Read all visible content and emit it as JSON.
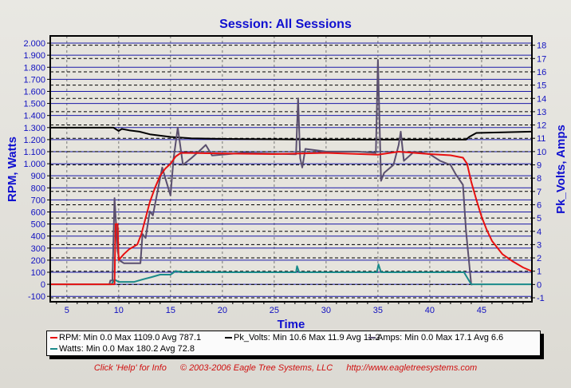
{
  "chart_data": {
    "type": "line",
    "title": "Session: All Sessions",
    "xlabel": "Time",
    "ylabel": "RPM, Watts",
    "y2label": "Pk_Volts, Amps",
    "xlim": [
      3.4,
      49.85
    ],
    "ylim": [
      -145,
      2060
    ],
    "y2lim": [
      -1.3,
      18.7
    ],
    "xticks": [
      5,
      10,
      15,
      20,
      25,
      30,
      35,
      40,
      45
    ],
    "yticks": [
      -100,
      0,
      100,
      200,
      300,
      400,
      500,
      600,
      700,
      800,
      900,
      "1.000",
      "1.100",
      "1.200",
      "1.300",
      "1.400",
      "1.500",
      "1.600",
      "1.700",
      "1.800",
      "1.900",
      "2.000"
    ],
    "y2ticks": [
      -1,
      0,
      1,
      2,
      3,
      4,
      5,
      6,
      7,
      8,
      9,
      10,
      11,
      12,
      13,
      14,
      15,
      16,
      17,
      18
    ],
    "grid": true,
    "legend_position": "bottom",
    "series": [
      {
        "name": "RPM",
        "axis": "left",
        "color": "#e81010",
        "legend": "RPM:  Min 0.0 Max 1109.0 Avg 787.1",
        "x": [
          3.4,
          9.6,
          9.7,
          9.9,
          10.0,
          10.5,
          11,
          11.8,
          12.2,
          13,
          13.5,
          14,
          14.5,
          15,
          15.5,
          16,
          20,
          25,
          30,
          35,
          37,
          40,
          42,
          43.2,
          43.6,
          44,
          44.5,
          45,
          45.5,
          46,
          47,
          48,
          49,
          49.8
        ],
        "y": [
          0,
          0,
          500,
          500,
          200,
          250,
          290,
          330,
          420,
          680,
          800,
          900,
          960,
          1000,
          1060,
          1090,
          1085,
          1080,
          1090,
          1075,
          1100,
          1080,
          1070,
          1050,
          1000,
          850,
          700,
          560,
          450,
          360,
          250,
          190,
          140,
          110
        ]
      },
      {
        "name": "Pk_Volts",
        "axis": "right",
        "color": "#000000",
        "legend": "Pk_Volts:  Min 10.6 Max 11.9 Avg 11.2",
        "x": [
          3.4,
          9.5,
          10,
          10.3,
          11,
          12,
          13,
          15,
          17,
          20,
          30,
          43.5,
          43.8,
          44.5,
          49.8
        ],
        "y": [
          11.8,
          11.8,
          11.55,
          11.7,
          11.6,
          11.5,
          11.3,
          11.1,
          11.0,
          10.95,
          10.9,
          10.9,
          11.1,
          11.4,
          11.5
        ]
      },
      {
        "name": "Amps",
        "axis": "right",
        "color": "#5a4f6e",
        "legend": "Amps:  Min 0.0 Max 17.1 Avg 6.6",
        "x": [
          9.1,
          9.2,
          9.4,
          9.6,
          9.9,
          10.1,
          10.5,
          12.1,
          12.3,
          12.6,
          13,
          13.3,
          13.8,
          14.2,
          14.5,
          15,
          15.3,
          15.7,
          16.2,
          17,
          18,
          18.4,
          19,
          22,
          27.1,
          27.3,
          27.5,
          27.7,
          28,
          30,
          33,
          34.8,
          35,
          35.3,
          35.6,
          36.5,
          37,
          37.2,
          37.5,
          38.5,
          40,
          41,
          42,
          42.5,
          43.2,
          43.5,
          44,
          44.1
        ],
        "y": [
          0,
          0.3,
          0.3,
          6.5,
          2.5,
          1.8,
          1.6,
          1.6,
          3.8,
          3.5,
          5.5,
          5.2,
          7.2,
          8.8,
          8.0,
          6.7,
          9.5,
          11.8,
          9.0,
          9.5,
          10.2,
          10.5,
          9.7,
          9.9,
          9.8,
          14,
          9.5,
          8.8,
          10.2,
          10,
          10,
          9.9,
          16.9,
          7.8,
          8.4,
          9,
          10.5,
          11.5,
          9.3,
          10,
          9.8,
          9.3,
          9.0,
          8.3,
          7.5,
          4,
          0,
          0
        ]
      },
      {
        "name": "Watts",
        "axis": "left",
        "color": "#1a8a8a",
        "legend": "Watts:  Min 0.0 Max 180.2 Avg 72.8",
        "x": [
          3.4,
          9.3,
          9.6,
          10,
          11.5,
          12.3,
          13.2,
          14,
          15,
          15.5,
          16,
          27.1,
          27.2,
          27.4,
          34.9,
          35.05,
          35.3,
          43.3,
          44,
          49.8
        ],
        "y": [
          0,
          0,
          40,
          20,
          20,
          40,
          60,
          80,
          80,
          110,
          100,
          100,
          150,
          100,
          100,
          165,
          100,
          100,
          0,
          0
        ]
      }
    ]
  },
  "footer": {
    "help": "Click 'Help' for Info",
    "copyright": "© 2003-2006 Eagle Tree Systems, LLC",
    "url": "http://www.eagletreesystems.com"
  }
}
